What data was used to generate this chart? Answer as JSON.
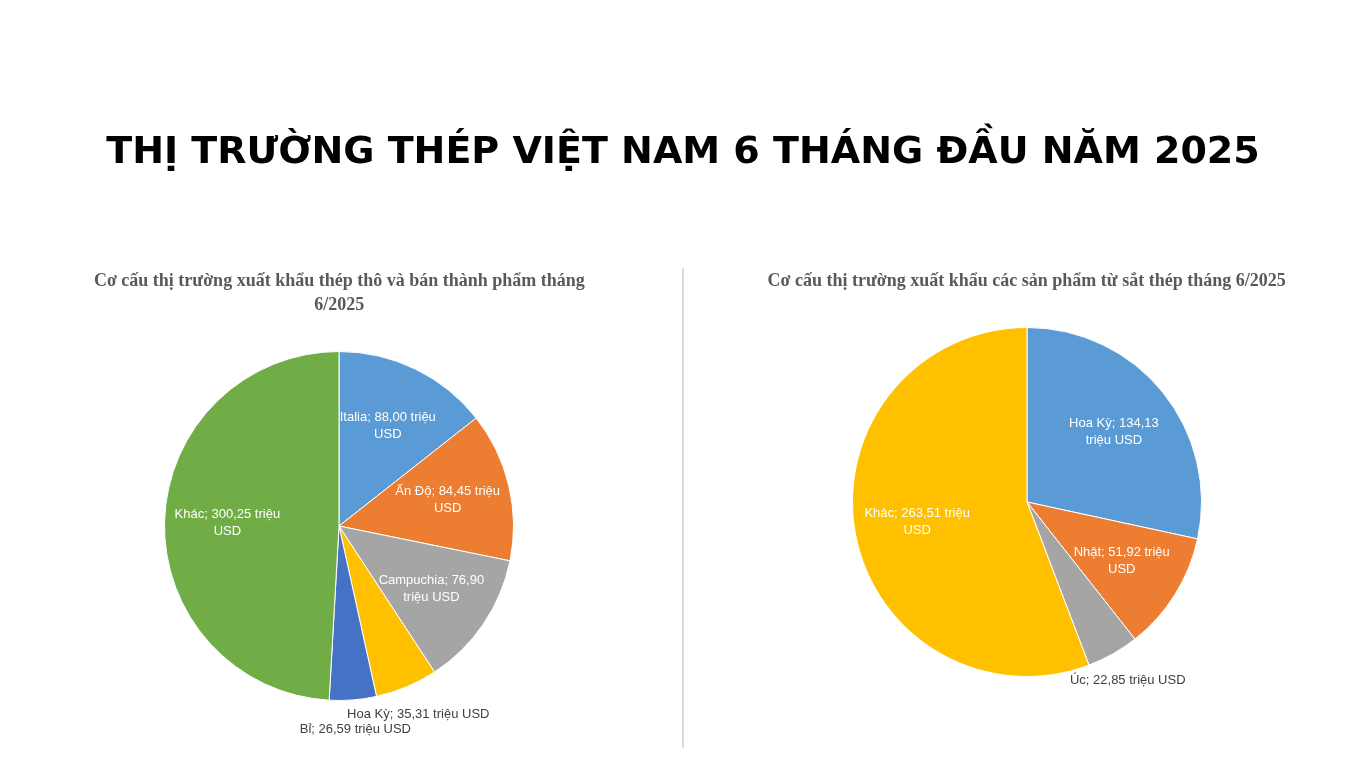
{
  "chart_data": [
    {
      "type": "pie",
      "title": "THỊ TRƯỜNG THÉP VIỆT NAM 6 THÁNG ĐẦU NĂM 2025",
      "subtitle": "Cơ cấu thị trường xuất khẩu thép thô và bán thành phẩm tháng 6/2025",
      "categories": [
        "Italia",
        "Ấn Độ",
        "Campuchia",
        "Hoa Kỳ",
        "Bỉ",
        "Khác"
      ],
      "values": [
        88.0,
        84.45,
        76.9,
        35.31,
        26.59,
        300.25
      ],
      "value_labels": [
        "88,00 triệu USD",
        "84,45 triệu USD",
        "76,90 triệu USD",
        "35,31 triệu USD",
        "26,59 triệu USD",
        "300,25 triệu USD"
      ],
      "colors": [
        "#5b9bd5",
        "#ed7d31",
        "#a5a5a5",
        "#ffc000",
        "#4472c4",
        "#70ad47"
      ],
      "legend": false
    },
    {
      "type": "pie",
      "subtitle": "Cơ cấu thị trường xuất khẩu các sản phẩm từ sắt thép tháng 6/2025",
      "categories": [
        "Hoa Kỳ",
        "Nhật",
        "Úc",
        "Khác"
      ],
      "values": [
        134.13,
        51.92,
        22.85,
        263.51
      ],
      "value_labels": [
        "134,13 triệu USD",
        "51,92 triệu USD",
        "22,85 triệu USD",
        "263,51 triệu USD"
      ],
      "colors": [
        "#5b9bd5",
        "#ed7d31",
        "#a5a5a5",
        "#ffc000"
      ],
      "legend": false
    }
  ]
}
